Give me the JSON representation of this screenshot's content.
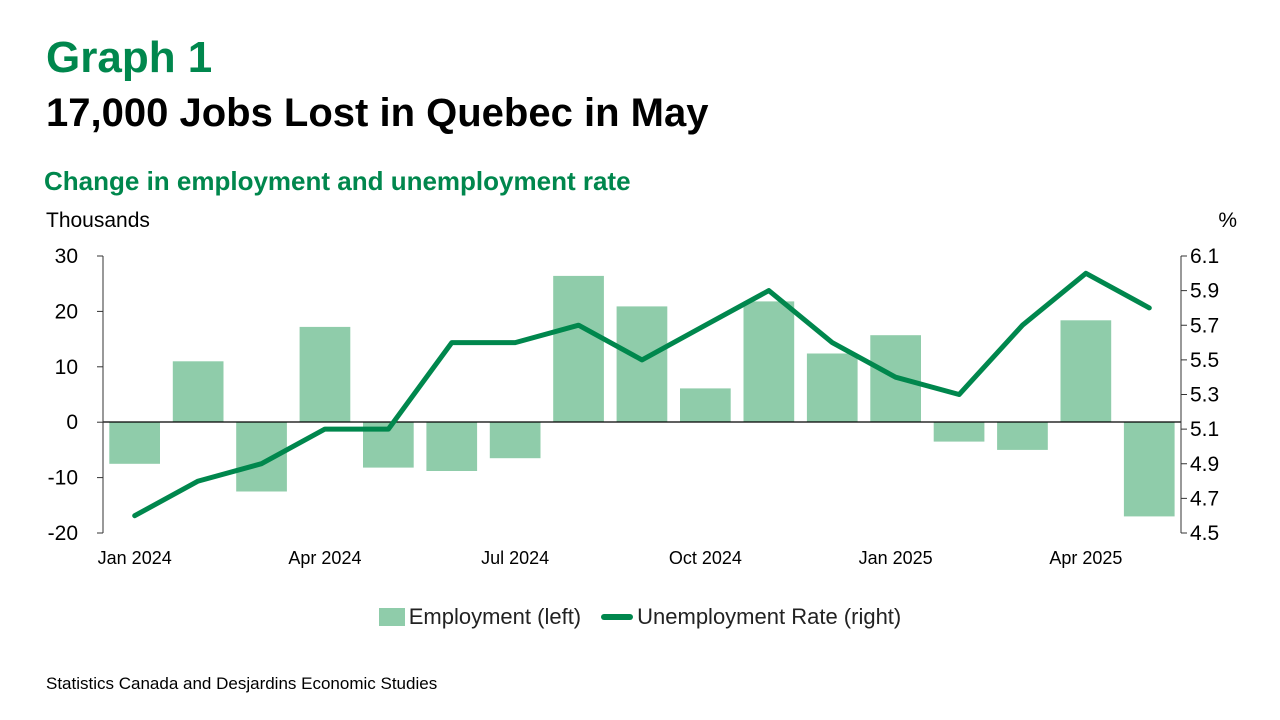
{
  "header": {
    "graph_label": "Graph 1",
    "title": "17,000 Jobs Lost in Quebec in May",
    "subtitle": "Change in employment and unemployment rate"
  },
  "chart_data": {
    "type": "bar",
    "left_axis_label": "Thousands",
    "right_axis_label": "%",
    "categories": [
      "Jan 2024",
      "Feb 2024",
      "Mar 2024",
      "Apr 2024",
      "May 2024",
      "Jun 2024",
      "Jul 2024",
      "Aug 2024",
      "Sep 2024",
      "Oct 2024",
      "Nov 2024",
      "Dec 2024",
      "Jan 2025",
      "Feb 2025",
      "Mar 2025",
      "Apr 2025",
      "May 2025"
    ],
    "x_tick_labels": [
      "Jan 2024",
      "Apr 2024",
      "Jul 2024",
      "Oct 2024",
      "Jan 2025",
      "Apr 2025"
    ],
    "x_tick_indices": [
      0,
      3,
      6,
      9,
      12,
      15
    ],
    "series": [
      {
        "name": "Employment (left)",
        "type": "bar",
        "axis": "left",
        "color": "#8fccaa",
        "values": [
          -7.5,
          11,
          -12.5,
          17.2,
          -8.2,
          -8.8,
          -6.5,
          26.4,
          20.9,
          6.1,
          21.8,
          12.4,
          15.7,
          -3.5,
          -5,
          18.4,
          -17
        ]
      },
      {
        "name": "Unemployment Rate (right)",
        "type": "line",
        "axis": "right",
        "color": "#00874d",
        "values": [
          4.6,
          4.8,
          4.9,
          5.1,
          5.1,
          5.6,
          5.6,
          5.7,
          5.5,
          5.7,
          5.9,
          5.6,
          5.4,
          5.3,
          5.7,
          6.0,
          5.8
        ]
      }
    ],
    "y_left": {
      "min": -20,
      "max": 30,
      "ticks": [
        "30",
        "20",
        "10",
        "0",
        "-10",
        "-20"
      ]
    },
    "y_right": {
      "min": 4.5,
      "max": 6.1,
      "ticks": [
        "6.1",
        "5.9",
        "5.7",
        "5.5",
        "5.3",
        "5.1",
        "4.9",
        "4.7",
        "4.5"
      ]
    },
    "legend_position": "bottom",
    "grid": false
  },
  "source": "Statistics Canada and Desjardins Economic Studies"
}
